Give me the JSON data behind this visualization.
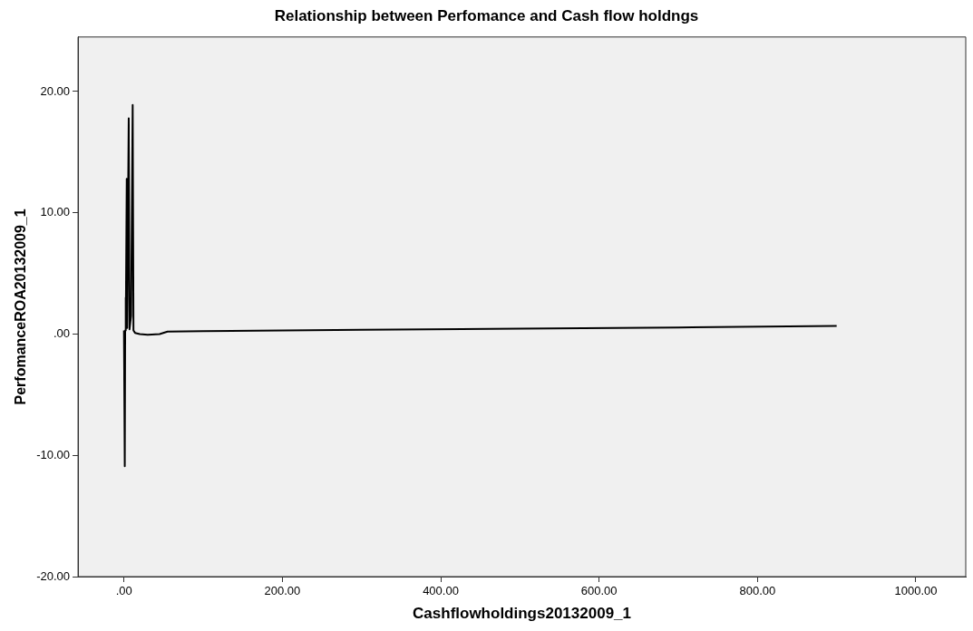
{
  "chart_data": {
    "type": "line",
    "title": "Relationship between Perfomance and Cash flow holdngs",
    "xlabel": "Cashflowholdings20132009_1",
    "ylabel": "PerfomanceROA20132009_1",
    "x": [
      0,
      1,
      1.5,
      2,
      2.5,
      3.5,
      4,
      6,
      7,
      9,
      11,
      12,
      14,
      20,
      30,
      45,
      55,
      100,
      300,
      500,
      700,
      900
    ],
    "series": [
      {
        "color": "#000000",
        "values": [
          0.3,
          -10.9,
          0.3,
          3,
          0.3,
          12.8,
          0.5,
          17.8,
          0.4,
          1.5,
          18.9,
          0.3,
          0.1,
          0,
          -0.05,
          0,
          0.2,
          0.25,
          0.35,
          0.45,
          0.55,
          0.68
        ]
      }
    ],
    "xlim": [
      -58,
      1063
    ],
    "ylim": [
      -20,
      24.5
    ],
    "xticks": [
      {
        "value": 0,
        "label": ".00"
      },
      {
        "value": 200,
        "label": "200.00"
      },
      {
        "value": 400,
        "label": "400.00"
      },
      {
        "value": 600,
        "label": "600.00"
      },
      {
        "value": 800,
        "label": "800.00"
      },
      {
        "value": 1000,
        "label": "1000.00"
      }
    ],
    "yticks": [
      {
        "value": -20,
        "label": "-20.00"
      },
      {
        "value": -10,
        "label": "-10.00"
      },
      {
        "value": 0,
        "label": ".00"
      },
      {
        "value": 10,
        "label": "10.00"
      },
      {
        "value": 20,
        "label": "20.00"
      }
    ],
    "grid": false,
    "legend": false,
    "marker": "none",
    "line_style": "solid"
  }
}
